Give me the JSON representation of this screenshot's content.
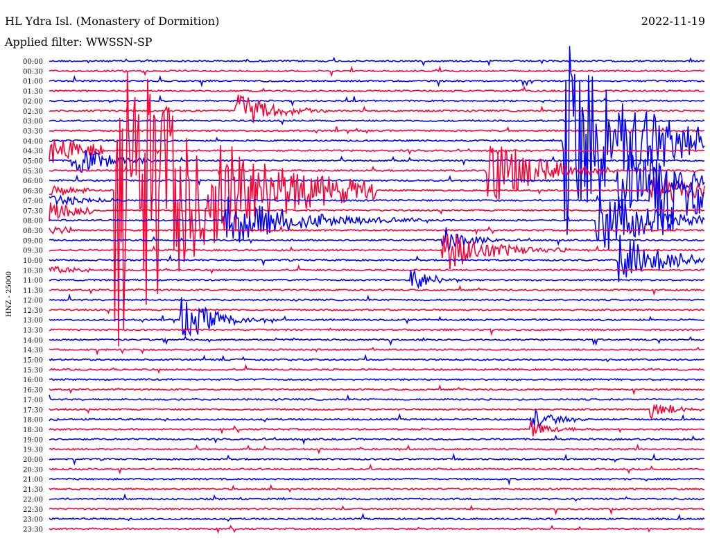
{
  "header": {
    "station": "HL Ydra Isl. (Monastery of Dormition)",
    "date": "2022-11-19",
    "filter": "Applied filter: WWSSN-SP"
  },
  "chart_data": {
    "type": "line",
    "ylabel": "HNZ - 25000",
    "colors": [
      "#0000ff",
      "#ff0033"
    ],
    "time_labels": [
      "00:00",
      "00:30",
      "01:00",
      "01:30",
      "02:00",
      "02:30",
      "03:00",
      "03:30",
      "04:00",
      "04:30",
      "05:00",
      "05:30",
      "06:00",
      "06:30",
      "07:00",
      "07:30",
      "08:00",
      "08:30",
      "09:00",
      "09:30",
      "10:00",
      "10:30",
      "11:00",
      "11:30",
      "12:00",
      "12:30",
      "13:00",
      "13:30",
      "14:00",
      "14:30",
      "15:00",
      "15:30",
      "16:00",
      "16:30",
      "17:00",
      "17:30",
      "18:00",
      "18:30",
      "19:00",
      "19:30",
      "20:00",
      "20:30",
      "21:00",
      "21:30",
      "22:00",
      "22:30",
      "23:00",
      "23:30"
    ],
    "trace_minutes": 30,
    "events": [
      {
        "row": 5,
        "minute": 8.5,
        "amplitude": 30,
        "duration": 1.5
      },
      {
        "row": 8,
        "minute": 23.5,
        "amplitude": 160,
        "duration": 3
      },
      {
        "row": 10,
        "minute": 1,
        "amplitude": 25,
        "duration": 1.5
      },
      {
        "row": 11,
        "minute": 20,
        "amplitude": 60,
        "duration": 2
      },
      {
        "row": 11,
        "minute": 63,
        "amplitude": 250,
        "duration": 4
      },
      {
        "row": 11,
        "minute": 56,
        "amplitude": 60,
        "duration": 2
      },
      {
        "row": 13,
        "minute": 27.5,
        "amplitude": 30,
        "duration": 2
      },
      {
        "row": 14,
        "minute": 27.5,
        "amplitude": 90,
        "duration": 1.5
      },
      {
        "row": 16,
        "minute": 8,
        "amplitude": 40,
        "duration": 3
      },
      {
        "row": 16,
        "minute": 25,
        "amplitude": 60,
        "duration": 2
      },
      {
        "row": 18,
        "minute": 18,
        "amplitude": 25,
        "duration": 1
      },
      {
        "row": 19,
        "minute": 18,
        "amplitude": 35,
        "duration": 2
      },
      {
        "row": 20,
        "minute": 26,
        "amplitude": 40,
        "duration": 2
      },
      {
        "row": 22,
        "minute": 16.5,
        "amplitude": 20,
        "duration": 1
      },
      {
        "row": 26,
        "minute": 6,
        "amplitude": 35,
        "duration": 1.5
      },
      {
        "row": 35,
        "minute": 27.5,
        "amplitude": 15,
        "duration": 1
      },
      {
        "row": 36,
        "minute": 22,
        "amplitude": 18,
        "duration": 1
      },
      {
        "row": 37,
        "minute": 22,
        "amplitude": 12,
        "duration": 1
      }
    ]
  }
}
